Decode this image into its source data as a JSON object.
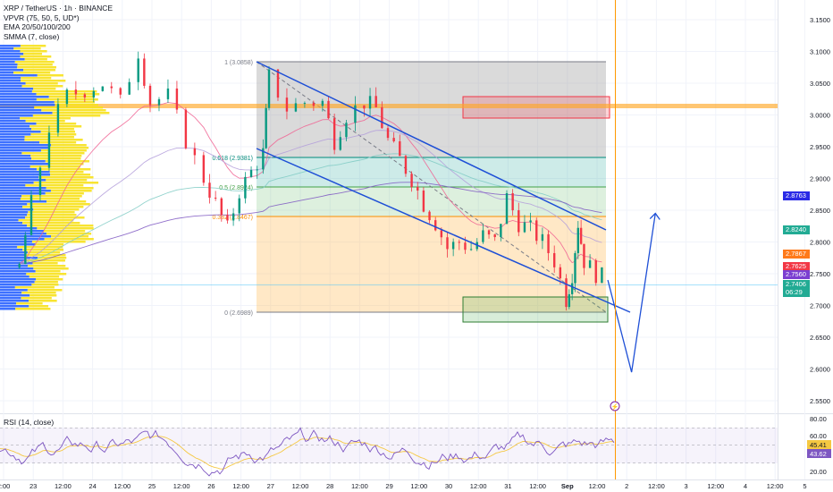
{
  "header": {
    "symbol": "XRP / TetherUS · 1h · BINANCE",
    "indicators": [
      "VPVR (75, 50, 5, UD*)",
      "EMA 20/50/100/200",
      "SMMA (7, close)"
    ]
  },
  "rsi": {
    "label": "RSI (14, close)",
    "axis_labels": [
      "80.00",
      "60.00",
      "40.00",
      "20.00"
    ],
    "badges": {
      "rsi": "45.41",
      "ma": "43.62"
    }
  },
  "price_axis": {
    "labels": [
      "3.1500",
      "3.1000",
      "3.0500",
      "3.0000",
      "2.9500",
      "2.9000",
      "2.8500",
      "2.8000",
      "2.7500",
      "2.7000",
      "2.6500",
      "2.6000",
      "2.5500"
    ],
    "badges": [
      {
        "text": "2.8763",
        "color": "#2a2ae6"
      },
      {
        "text": "2.8240",
        "color": "#22ab94"
      },
      {
        "text": "2.7867",
        "color": "#ff7a1a"
      },
      {
        "text": "2.7625",
        "color": "#f23645"
      },
      {
        "text": "2.7560",
        "color": "#7b3fd1"
      },
      {
        "text": "2.7406",
        "color": "#22ab94"
      },
      {
        "text": "06:29",
        "color": "#22ab94"
      }
    ]
  },
  "time_axis": {
    "labels": [
      "2:00",
      "23",
      "12:00",
      "24",
      "12:00",
      "25",
      "12:00",
      "26",
      "12:00",
      "27",
      "12:00",
      "28",
      "12:00",
      "29",
      "12:00",
      "30",
      "12:00",
      "31",
      "12:00",
      "Sep",
      "12:00",
      "2",
      "12:00",
      "3",
      "12:00",
      "4",
      "12:00",
      "5"
    ]
  },
  "fibonacci": {
    "levels": [
      {
        "label": "1 (3.0858)",
        "price": 3.0858
      },
      {
        "label": "0.618 (2.9381)",
        "price": 2.9381
      },
      {
        "label": "0.5 (2.8924)",
        "price": 2.8924
      },
      {
        "label": "0.382 (2.8467)",
        "price": 2.8467
      },
      {
        "label": "0 (2.6989)",
        "price": 2.6989
      }
    ]
  },
  "chart_data": {
    "type": "candlestick",
    "symbol": "XRP/USDT",
    "interval": "1h",
    "y_range": [
      2.55,
      3.16
    ],
    "horizontal_resistance": 3.015,
    "supply_zone": [
      3.0,
      3.033
    ],
    "demand_zone": [
      2.684,
      2.721
    ],
    "price_path": [
      [
        22.8,
        2.76
      ],
      [
        23.0,
        2.86
      ],
      [
        23.3,
        2.98
      ],
      [
        23.6,
        3.03
      ],
      [
        23.9,
        3.04
      ],
      [
        24.2,
        3.05
      ],
      [
        24.5,
        3.02
      ],
      [
        24.8,
        3.1
      ],
      [
        25.0,
        3.02
      ],
      [
        25.3,
        3.03
      ],
      [
        25.6,
        2.96
      ],
      [
        25.9,
        2.9
      ],
      [
        26.1,
        2.86
      ],
      [
        26.3,
        2.82
      ],
      [
        26.5,
        2.88
      ],
      [
        26.7,
        2.91
      ],
      [
        26.9,
        2.94
      ],
      [
        27.0,
        3.06
      ],
      [
        27.3,
        3.01
      ],
      [
        27.6,
        3.02
      ],
      [
        27.9,
        3.02
      ],
      [
        28.1,
        2.96
      ],
      [
        28.3,
        3.0
      ],
      [
        28.6,
        3.02
      ],
      [
        28.8,
        3.01
      ],
      [
        29.0,
        2.96
      ],
      [
        29.2,
        2.93
      ],
      [
        29.4,
        2.9
      ],
      [
        29.6,
        2.86
      ],
      [
        29.8,
        2.83
      ],
      [
        30.0,
        2.79
      ],
      [
        30.2,
        2.8
      ],
      [
        30.4,
        2.79
      ],
      [
        30.6,
        2.81
      ],
      [
        30.8,
        2.8
      ],
      [
        31.0,
        2.87
      ],
      [
        31.2,
        2.83
      ],
      [
        31.4,
        2.82
      ],
      [
        31.6,
        2.8
      ],
      [
        31.8,
        2.77
      ],
      [
        32.0,
        2.71
      ],
      [
        32.1,
        2.75
      ],
      [
        32.2,
        2.83
      ],
      [
        32.3,
        2.77
      ],
      [
        32.5,
        2.75
      ],
      [
        32.7,
        2.74
      ]
    ],
    "forecast_path": [
      [
        32.7,
        2.74
      ],
      [
        33.1,
        2.595
      ],
      [
        33.5,
        2.845
      ]
    ]
  },
  "colors": {
    "up": "#089981",
    "down": "#f23645",
    "fib_line": "#2e7d32",
    "channel": "#1e4fd6",
    "vp_up": "#2962ff",
    "vp_down": "#f7e11b",
    "ema20": "#f06292",
    "ema50": "#b39ddb",
    "ema100": "#80cbc4",
    "ema200": "#7e57c2"
  }
}
